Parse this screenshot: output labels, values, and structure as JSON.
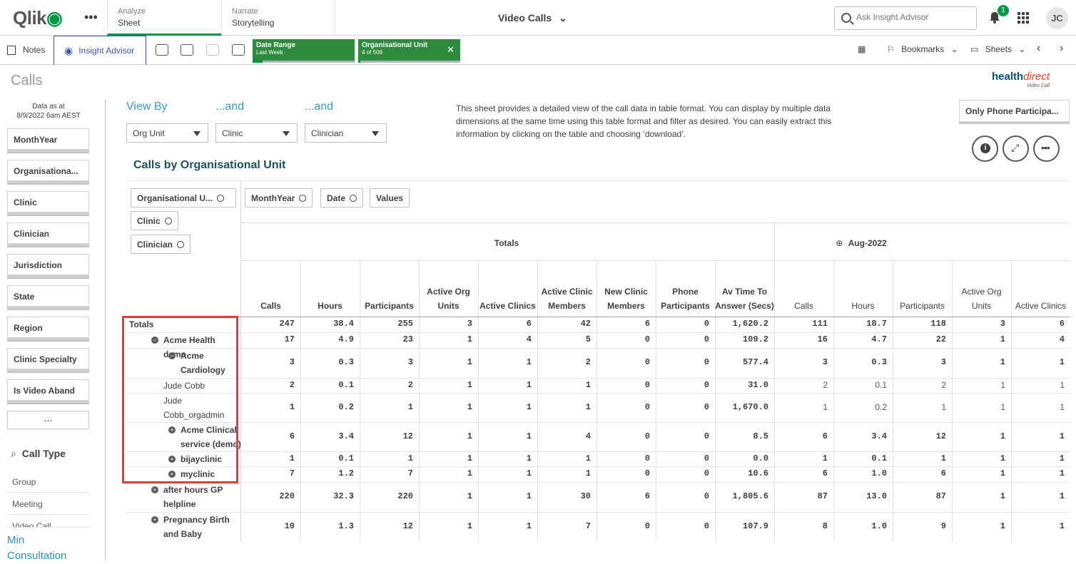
{
  "topbar": {
    "logo": "Qlik",
    "tabs": [
      {
        "small": "Analyze",
        "big": "Sheet"
      },
      {
        "small": "Narrate",
        "big": "Storytelling"
      }
    ],
    "app_title": "Video Calls",
    "search_placeholder": "Ask Insight Advisor",
    "notifications": "1",
    "user_initials": "JC"
  },
  "toolbar": {
    "notes": "Notes",
    "insight_advisor": "Insight Advisor",
    "selections": [
      {
        "title": "Date Range",
        "value": "Last Week",
        "fill": 0.1
      },
      {
        "title": "Organisational Unit",
        "value": "4 of 508",
        "fill": 0.01
      }
    ],
    "bookmarks": "Bookmarks",
    "sheets": "Sheets"
  },
  "left": {
    "page_title": "Calls",
    "data_as_label": "Data as at",
    "data_as_value": "8/9/2022 6am AEST",
    "filters": [
      "MonthYear",
      "Organisationa...",
      "Clinic",
      "Clinician",
      "Jurisdiction",
      "State",
      "Region",
      "Clinic Specialty",
      "Is Video Aband"
    ],
    "more": "...",
    "call_type_title": "Call Type",
    "call_types": [
      "Group",
      "Meeting",
      "Video Call"
    ],
    "min_consultation_1": "Min",
    "min_consultation_2": "Consultation"
  },
  "viewby": {
    "labels": [
      "View By",
      "...and",
      "...and"
    ],
    "dropdowns": [
      "Org Unit",
      "Clinic",
      "Clinician"
    ]
  },
  "description": "This sheet provides a detailed view of the call data in table format. You can display by multiple data dimensions at the same time using this table format and filter as desired. You can easily extract this information by clicking on the table and choosing ‘download’.",
  "brand": {
    "health": "health",
    "direct": "direct",
    "sub": "Video Call"
  },
  "only_phone": "Only Phone Participa...",
  "table": {
    "title": "Calls by Organisational Unit",
    "row_dims": [
      "Organisational U...",
      "Clinic",
      "Clinician"
    ],
    "col_dims": [
      "MonthYear",
      "Date",
      "Values"
    ],
    "group_totals": "Totals",
    "group_aug": "Aug-2022",
    "headers_totals": [
      "Calls",
      "Hours",
      "Participants",
      "Active Org Units",
      "Active Clinics",
      "Active Clinic Members",
      "New Clinic Members",
      "Phone Participants",
      "Av Time To Answer (Secs)"
    ],
    "headers_aug": [
      "Calls",
      "Hours",
      "Participants",
      "Active Org Units",
      "Active Clinics"
    ],
    "rows": [
      {
        "label": "Totals",
        "values": [
          "247",
          "38.4",
          "255",
          "3",
          "6",
          "42",
          "6",
          "0",
          "1,620.2"
        ],
        "aug": [
          "111",
          "18.7",
          "118",
          "3",
          "6"
        ]
      },
      {
        "label": "Acme Health demo",
        "values": [
          "17",
          "4.9",
          "23",
          "1",
          "4",
          "5",
          "0",
          "0",
          "109.2"
        ],
        "aug": [
          "16",
          "4.7",
          "22",
          "1",
          "4"
        ]
      },
      {
        "label": "Acme Cardiology",
        "values": [
          "3",
          "0.3",
          "3",
          "1",
          "1",
          "2",
          "0",
          "0",
          "577.4"
        ],
        "aug": [
          "3",
          "0.3",
          "3",
          "1",
          "1"
        ]
      },
      {
        "label": "Jude Cobb",
        "values": [
          "2",
          "0.1",
          "2",
          "1",
          "1",
          "1",
          "0",
          "0",
          "31.0"
        ],
        "aug": [
          "2",
          "0.1",
          "2",
          "1",
          "1"
        ]
      },
      {
        "label": "Jude Cobb_orgadmin",
        "values": [
          "1",
          "0.2",
          "1",
          "1",
          "1",
          "1",
          "0",
          "0",
          "1,670.0"
        ],
        "aug": [
          "1",
          "0.2",
          "1",
          "1",
          "1"
        ]
      },
      {
        "label": "Acme Clinical service (demo)",
        "values": [
          "6",
          "3.4",
          "12",
          "1",
          "1",
          "4",
          "0",
          "0",
          "8.5"
        ],
        "aug": [
          "6",
          "3.4",
          "12",
          "1",
          "1"
        ]
      },
      {
        "label": "bijayclinic",
        "values": [
          "1",
          "0.1",
          "1",
          "1",
          "1",
          "1",
          "0",
          "0",
          "0.0"
        ],
        "aug": [
          "1",
          "0.1",
          "1",
          "1",
          "1"
        ]
      },
      {
        "label": "myclinic",
        "values": [
          "7",
          "1.2",
          "7",
          "1",
          "1",
          "1",
          "0",
          "0",
          "10.6"
        ],
        "aug": [
          "6",
          "1.0",
          "6",
          "1",
          "1"
        ]
      },
      {
        "label": "after hours GP helpline",
        "values": [
          "220",
          "32.3",
          "220",
          "1",
          "1",
          "30",
          "6",
          "0",
          "1,805.6"
        ],
        "aug": [
          "87",
          "13.0",
          "87",
          "1",
          "1"
        ]
      },
      {
        "label": "Pregnancy Birth and Baby helpline",
        "values": [
          "10",
          "1.3",
          "12",
          "1",
          "1",
          "7",
          "0",
          "0",
          "107.9"
        ],
        "aug": [
          "8",
          "1.0",
          "9",
          "1",
          "1"
        ]
      }
    ]
  },
  "colors": {
    "accent": "#009845",
    "selection": "#2e8b3e",
    "highlight": "#e0403a",
    "link": "#3a9bbe"
  }
}
